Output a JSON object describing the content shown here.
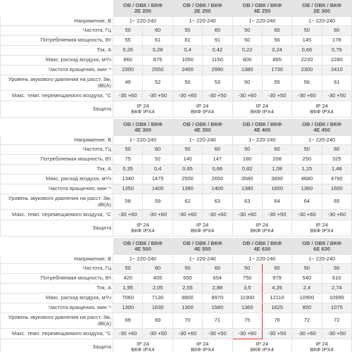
{
  "blocks": [
    {
      "models": [
        [
          "ОВ / ОВК / ВКФ",
          "2Е 200"
        ],
        [
          "ОВ / ОВК / ВКФ",
          "2Е 250"
        ],
        [
          "ОВ / ОВК / ВКФ",
          "4Е 250"
        ],
        [
          "ОВ / ОВК / ВКФ",
          "2Е 300"
        ]
      ],
      "rows": [
        {
          "label": "Напряжение, В",
          "cells": [
            "1~ 220-240",
            "1~ 220-240",
            "1~ 220-240",
            "1~ 220-240"
          ]
        },
        {
          "label": "Частота, Гц",
          "cells": [
            "50",
            "60",
            "50",
            "60",
            "50",
            "60",
            "50",
            "60"
          ]
        },
        {
          "label": "Потребляемая мощность, Вт",
          "cells": [
            "55",
            "61",
            "81",
            "91",
            "50",
            "56",
            "145",
            "178"
          ]
        },
        {
          "label": "Ток, А",
          "cells": [
            "0,26",
            "0,28",
            "0,4",
            "0,42",
            "0,22",
            "0,24",
            "0,66",
            "0,79"
          ]
        },
        {
          "label": "Макс. расход воздуха, м³/ч",
          "cells": [
            "860",
            "875",
            "1050",
            "1150",
            "800",
            "865",
            "2230",
            "2280"
          ]
        },
        {
          "label": "Частота вращения, мин⁻¹",
          "cells": [
            "2300",
            "2550",
            "2400",
            "2990",
            "1380",
            "1730",
            "2300",
            "2410"
          ]
        },
        {
          "label": "Уровень звукового давления на расст. 3м, dB(A)",
          "cells": [
            "49",
            "52",
            "50",
            "53",
            "50",
            "55",
            "56",
            "61"
          ]
        },
        {
          "label": "Макс. темп. перемещаемого воздуха, °С",
          "cells": [
            "-30 +60",
            "-30 +50",
            "-30 +60",
            "-30 +50",
            "-30 +60",
            "-30 +50",
            "-30 +60",
            "-30 +50"
          ]
        },
        {
          "label": "Защита",
          "cells": [
            [
              "IP 24",
              "ВКФ IPX4"
            ],
            [
              "IP 24",
              "ВКФ IPX4"
            ],
            [
              "IP 24",
              "ВКФ IPX4"
            ],
            [
              "IP 24",
              "ВКФ IPX4"
            ]
          ]
        }
      ]
    },
    {
      "models": [
        [
          "ОВ / ОВК / ВКФ",
          "4Е 300"
        ],
        [
          "ОВ / ОВК / ВКФ",
          "4Е 350"
        ],
        [
          "ОВ / ОВК / ВКФ",
          "4Е 400"
        ],
        [
          "ОВ / ОВК / ВКФ",
          "4Е 450"
        ]
      ],
      "rows": [
        {
          "label": "Напряжение, В",
          "cells": [
            "1~ 220-240",
            "1~ 220-240",
            "1~ 220-240",
            "1~ 220-240"
          ]
        },
        {
          "label": "Частота, Гц",
          "cells": [
            "50",
            "60",
            "50",
            "60",
            "50",
            "60",
            "50",
            "60"
          ]
        },
        {
          "label": "Потребляемая мощность, Вт",
          "cells": [
            "75",
            "92",
            "140",
            "147",
            "180",
            "208",
            "250",
            "325"
          ]
        },
        {
          "label": "Ток, А",
          "cells": [
            "0,35",
            "0,4",
            "0,65",
            "0,66",
            "0,82",
            "1,08",
            "1,15",
            "1,48"
          ]
        },
        {
          "label": "Макс. расход воздуха, м³/ч",
          "cells": [
            "1340",
            "1475",
            "2500",
            "2650",
            "3580",
            "3890",
            "4680",
            "4790"
          ]
        },
        {
          "label": "Частота вращения, мин⁻¹",
          "cells": [
            "1350",
            "1405",
            "1380",
            "1400",
            "1380",
            "1650",
            "1360",
            "1600"
          ]
        },
        {
          "label": "Уровень звукового давления на расст. 3м, dB(A)",
          "cells": [
            "58",
            "59",
            "62",
            "63",
            "63",
            "64",
            "64",
            "65"
          ]
        },
        {
          "label": "Макс. темп. перемещаемого воздуха, °С",
          "cells": [
            "-30 +60",
            "-30 +60",
            "-30 +60",
            "-30 +60",
            "-30 +60",
            "-30 +50",
            "-30 +60",
            "-30 +60"
          ]
        },
        {
          "label": "Защита",
          "cells": [
            [
              "IP 24",
              "ВКФ IPX4"
            ],
            [
              "IP 24",
              "ВКФ IPX4"
            ],
            [
              "IP 24",
              "ВКФ IPX4"
            ],
            [
              "IP 24",
              "ВКФ IPX4"
            ]
          ]
        }
      ]
    },
    {
      "models": [
        [
          "ОВ / ОВК / ВКФ",
          "4Е 500"
        ],
        [
          "ОВ / ОВК / ВКФ",
          "4Е 550"
        ],
        [
          "ОВ / ОВК / ВКФ",
          "4Е 630"
        ],
        [
          "ОВ / ОВК / ВКФ",
          "6Е 630"
        ]
      ],
      "rows": [
        {
          "label": "Напряжение, В",
          "cells": [
            "1~ 220-240",
            "1~ 220-240",
            "1~ 220-240",
            "1~ 220-240"
          ]
        },
        {
          "label": "Частота, Гц",
          "cells": [
            "50",
            "60",
            "50",
            "60",
            "50",
            "60",
            "50",
            "60"
          ]
        },
        {
          "label": "Потребляемая мощность, Вт",
          "cells": [
            "420",
            "455",
            "550",
            "654",
            "750",
            "979",
            "540",
            "610"
          ]
        },
        {
          "label": "Ток, А",
          "cells": [
            "1,95",
            "2,05",
            "2,55",
            "2,88",
            "3,5",
            "4,26",
            "2,4",
            "2,74"
          ]
        },
        {
          "label": "Макс. расход воздуха, м³/ч",
          "cells": [
            "7060",
            "7130",
            "8800",
            "8970",
            "11900",
            "12110",
            "10900",
            "10990"
          ]
        },
        {
          "label": "Частота вращения, мин⁻¹",
          "cells": [
            "1300",
            "1630",
            "1300",
            "1580",
            "1360",
            "1625",
            "850",
            "1075"
          ]
        },
        {
          "label": "Уровень звукового давления на расст. 3м, dB(A)",
          "cells": [
            "69",
            "69",
            "70",
            "71",
            "75",
            "76",
            "72",
            "72"
          ]
        },
        {
          "label": "Макс. темп. перемещаемого воздуха, °С",
          "cells": [
            "-30 +60",
            "-30 +50",
            "-30 +60",
            "-30 +50",
            "-30 +60",
            "-30 +50",
            "-30 +60",
            "-30 +50"
          ]
        },
        {
          "label": "Защита",
          "cells": [
            [
              "IP 24",
              "ВКФ IPX4"
            ],
            [
              "IP 24",
              "ВКФ IPX4"
            ],
            [
              "IP 24",
              "ВКФ IPX4"
            ],
            [
              "IP 24",
              "ВКФ IPX4"
            ]
          ]
        }
      ]
    }
  ]
}
